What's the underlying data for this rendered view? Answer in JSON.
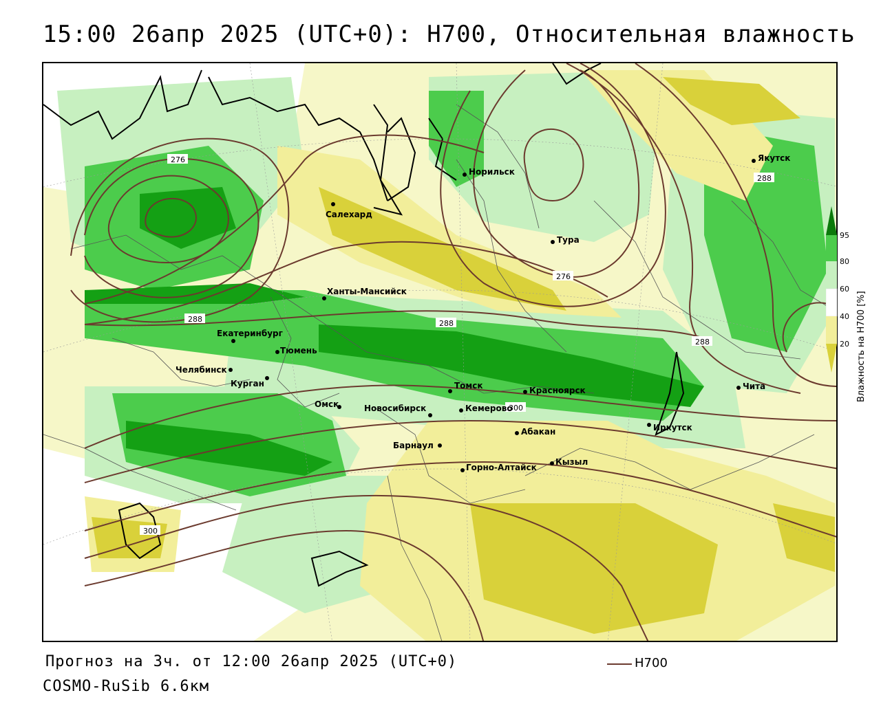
{
  "title": "15:00 26апр 2025 (UTC+0): H700, Относительная влажность",
  "footer": {
    "forecast": "Прогноз на 3ч. от 12:00 26апр 2025 (UTC+0)",
    "model": "COSMO-RuSib 6.6км"
  },
  "legend": {
    "line_label": "H700",
    "line_color": "#6b3a2e"
  },
  "colorbar": {
    "title": "Влажность на H700 [%]",
    "ticks": [
      "95",
      "80",
      "60",
      "40",
      "20"
    ],
    "colors": {
      "very_dry": "#d9d13a",
      "dry": "#f2ee9a",
      "neutral": "#ffffff",
      "moist": "#c7f0c0",
      "wet": "#4ccc4c",
      "very_wet": "#14a014",
      "saturated": "#0b7a0b"
    }
  },
  "cities": [
    {
      "name": "Якутск"
    },
    {
      "name": "Норильск"
    },
    {
      "name": "Салехард"
    },
    {
      "name": "Тура"
    },
    {
      "name": "Ханты-Мансийск"
    },
    {
      "name": "Екатеринбург"
    },
    {
      "name": "Тюмень"
    },
    {
      "name": "Челябинск"
    },
    {
      "name": "Курган"
    },
    {
      "name": "Омск"
    },
    {
      "name": "Томск"
    },
    {
      "name": "Красноярск"
    },
    {
      "name": "Новосибирск"
    },
    {
      "name": "Кемерово"
    },
    {
      "name": "Абакан"
    },
    {
      "name": "Барнаул"
    },
    {
      "name": "Горно-Алтайск"
    },
    {
      "name": "Кызыл"
    },
    {
      "name": "Иркутск"
    },
    {
      "name": "Чита"
    }
  ],
  "isolines": [
    "276",
    "276",
    "288",
    "288",
    "288",
    "288",
    "300",
    "300"
  ]
}
